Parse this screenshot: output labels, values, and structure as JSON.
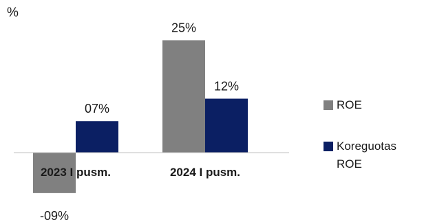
{
  "chart_data": {
    "type": "bar",
    "unit_label": "%",
    "categories": [
      "2023 I pusm.",
      "2024 I pusm."
    ],
    "series": [
      {
        "name": "ROE",
        "color": "#808080",
        "values": [
          -9,
          25
        ],
        "labels": [
          "-09%",
          "25%"
        ]
      },
      {
        "name": "Koreguotas ROE",
        "color": "#0b1f63",
        "values": [
          7,
          12
        ],
        "labels": [
          "07%",
          "12%"
        ]
      }
    ],
    "ylim": [
      -9,
      25
    ],
    "grid": false,
    "legend_position": "right"
  }
}
